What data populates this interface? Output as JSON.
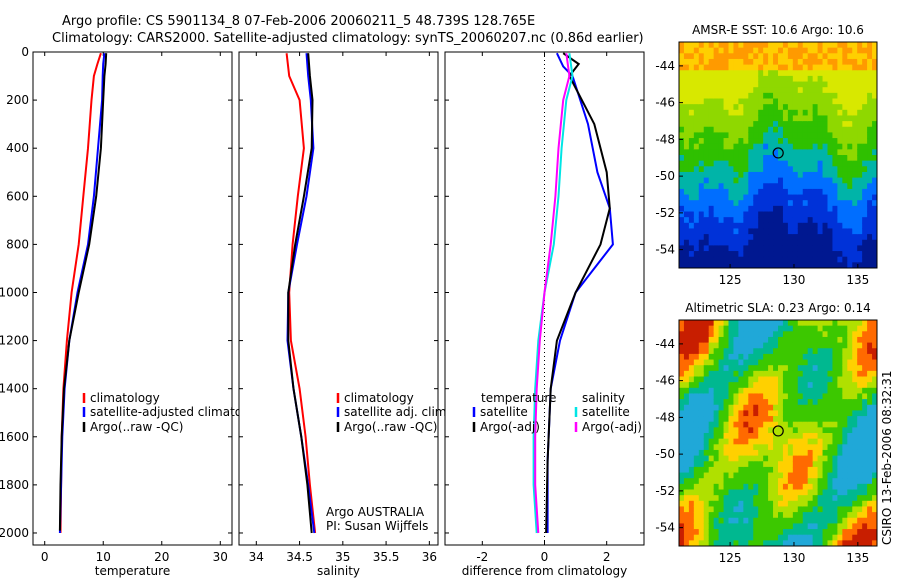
{
  "header": {
    "title_line1": "Argo profile: CS 5901134_8 07-Feb-2006 20060211_5 48.739S 128.765E",
    "title_line2": "Climatology: CARS2000. Satellite-adjusted climatology: synTS_20060207.nc (0.86d earlier)"
  },
  "colors": {
    "climatology": "#ff0000",
    "satellite": "#0000ff",
    "argo": "#000000",
    "salinity_sat": "#00e5e5",
    "salinity_argo": "#ff00ff"
  },
  "chart_data": [
    {
      "type": "line",
      "panel": "temperature",
      "xlabel": "temperature",
      "xlim": [
        -2,
        32
      ],
      "ylim": [
        2050,
        0
      ],
      "xticks": [
        "0",
        "10",
        "20",
        "30"
      ],
      "yticks": [
        "0",
        "200",
        "400",
        "600",
        "800",
        "1000",
        "1200",
        "1400",
        "1600",
        "1800",
        "2000"
      ],
      "legend": [
        "climatology",
        "satellite-adjusted climatology",
        "Argo(..raw -QC)"
      ],
      "series": [
        {
          "name": "climatology",
          "color": "#ff0000",
          "points": [
            [
              9.6,
              5
            ],
            [
              9.0,
              50
            ],
            [
              8.4,
              100
            ],
            [
              8.0,
              200
            ],
            [
              7.4,
              400
            ],
            [
              6.6,
              600
            ],
            [
              5.8,
              800
            ],
            [
              4.6,
              1000
            ],
            [
              3.8,
              1200
            ],
            [
              3.2,
              1400
            ],
            [
              2.9,
              1600
            ],
            [
              2.8,
              1800
            ],
            [
              2.7,
              2000
            ]
          ]
        },
        {
          "name": "satellite-adjusted climatology",
          "color": "#0000ff",
          "points": [
            [
              10.2,
              5
            ],
            [
              10.0,
              50
            ],
            [
              9.9,
              100
            ],
            [
              9.8,
              200
            ],
            [
              9.1,
              400
            ],
            [
              8.4,
              600
            ],
            [
              7.4,
              800
            ],
            [
              5.6,
              1000
            ],
            [
              4.2,
              1200
            ],
            [
              3.4,
              1400
            ],
            [
              3.0,
              1600
            ],
            [
              2.8,
              1800
            ],
            [
              2.6,
              2000
            ]
          ]
        },
        {
          "name": "Argo(..raw -QC)",
          "color": "#000000",
          "points": [
            [
              10.5,
              5
            ],
            [
              10.4,
              50
            ],
            [
              10.2,
              100
            ],
            [
              10.0,
              200
            ],
            [
              9.6,
              400
            ],
            [
              8.8,
              600
            ],
            [
              7.6,
              800
            ],
            [
              5.8,
              1000
            ],
            [
              4.2,
              1200
            ],
            [
              3.3,
              1400
            ],
            [
              2.9,
              1600
            ],
            [
              2.7,
              1800
            ],
            [
              2.6,
              1990
            ]
          ]
        }
      ]
    },
    {
      "type": "line",
      "panel": "salinity",
      "xlabel": "salinity",
      "xlim": [
        33.8,
        36.1
      ],
      "ylim": [
        2050,
        0
      ],
      "xticks": [
        "34",
        "34.5",
        "35",
        "35.5",
        "36"
      ],
      "yticks": [],
      "legend": [
        "climatology",
        "satellite adj. clim.",
        "Argo(..raw -QC)"
      ],
      "annotation": [
        "Argo AUSTRALIA",
        "PI: Susan Wijffels"
      ],
      "series": [
        {
          "name": "climatology",
          "color": "#ff0000",
          "points": [
            [
              34.35,
              5
            ],
            [
              34.38,
              100
            ],
            [
              34.5,
              200
            ],
            [
              34.55,
              400
            ],
            [
              34.48,
              600
            ],
            [
              34.42,
              800
            ],
            [
              34.38,
              1000
            ],
            [
              34.4,
              1200
            ],
            [
              34.5,
              1400
            ],
            [
              34.57,
              1600
            ],
            [
              34.62,
              1800
            ],
            [
              34.68,
              2000
            ]
          ]
        },
        {
          "name": "satellite adj. clim.",
          "color": "#0000ff",
          "points": [
            [
              34.58,
              5
            ],
            [
              34.6,
              100
            ],
            [
              34.63,
              200
            ],
            [
              34.66,
              400
            ],
            [
              34.58,
              600
            ],
            [
              34.47,
              800
            ],
            [
              34.37,
              1000
            ],
            [
              34.36,
              1200
            ],
            [
              34.43,
              1400
            ],
            [
              34.52,
              1600
            ],
            [
              34.6,
              1800
            ],
            [
              34.67,
              2000
            ]
          ]
        },
        {
          "name": "Argo(..raw -QC)",
          "color": "#000000",
          "points": [
            [
              34.6,
              5
            ],
            [
              34.62,
              100
            ],
            [
              34.65,
              200
            ],
            [
              34.64,
              400
            ],
            [
              34.55,
              600
            ],
            [
              34.45,
              800
            ],
            [
              34.37,
              1000
            ],
            [
              34.37,
              1200
            ],
            [
              34.43,
              1400
            ],
            [
              34.52,
              1600
            ],
            [
              34.59,
              1800
            ],
            [
              34.64,
              2000
            ]
          ]
        }
      ]
    },
    {
      "type": "line",
      "panel": "difference",
      "xlabel": "difference from climatology",
      "xlim": [
        -3.2,
        3.2
      ],
      "ylim": [
        2050,
        0
      ],
      "xticks": [
        "-2",
        "0",
        "2"
      ],
      "yticks": [],
      "legend_temperature": [
        "temperature",
        "satellite",
        "Argo(-adj)"
      ],
      "legend_salinity": [
        "salinity",
        "satellite",
        "Argo(-adj)"
      ],
      "series": [
        {
          "name": "temperature satellite",
          "color": "#0000ff",
          "points": [
            [
              0.4,
              5
            ],
            [
              0.6,
              60
            ],
            [
              0.9,
              100
            ],
            [
              1.4,
              300
            ],
            [
              1.7,
              500
            ],
            [
              2.1,
              650
            ],
            [
              2.2,
              800
            ],
            [
              1.0,
              1000
            ],
            [
              0.5,
              1200
            ],
            [
              0.2,
              1400
            ],
            [
              0.1,
              1700
            ],
            [
              0.1,
              2000
            ]
          ]
        },
        {
          "name": "temperature Argo(-adj)",
          "color": "#000000",
          "points": [
            [
              0.6,
              5
            ],
            [
              1.1,
              50
            ],
            [
              0.8,
              100
            ],
            [
              1.6,
              300
            ],
            [
              2.0,
              500
            ],
            [
              2.1,
              650
            ],
            [
              1.8,
              800
            ],
            [
              1.0,
              1000
            ],
            [
              0.4,
              1200
            ],
            [
              0.2,
              1400
            ],
            [
              0.1,
              1700
            ],
            [
              0.05,
              2000
            ]
          ]
        },
        {
          "name": "salinity satellite",
          "color": "#00e5e5",
          "points": [
            [
              0.8,
              5
            ],
            [
              0.9,
              100
            ],
            [
              0.7,
              200
            ],
            [
              0.55,
              400
            ],
            [
              0.45,
              600
            ],
            [
              0.3,
              800
            ],
            [
              0.0,
              1000
            ],
            [
              -0.2,
              1200
            ],
            [
              -0.3,
              1400
            ],
            [
              -0.35,
              1600
            ],
            [
              -0.35,
              1800
            ],
            [
              -0.25,
              2000
            ]
          ]
        },
        {
          "name": "salinity Argo(-adj)",
          "color": "#ff00ff",
          "points": [
            [
              0.7,
              5
            ],
            [
              0.8,
              100
            ],
            [
              0.6,
              200
            ],
            [
              0.45,
              400
            ],
            [
              0.35,
              600
            ],
            [
              0.2,
              800
            ],
            [
              0.0,
              1000
            ],
            [
              -0.15,
              1200
            ],
            [
              -0.25,
              1400
            ],
            [
              -0.3,
              1600
            ],
            [
              -0.3,
              1800
            ],
            [
              -0.2,
              2000
            ]
          ]
        }
      ]
    },
    {
      "type": "heatmap",
      "panel": "sst_map",
      "title": "AMSR-E SST: 10.6 Argo: 10.6",
      "xlim": [
        121,
        136.5
      ],
      "ylim": [
        -55,
        -42.7
      ],
      "xticks": [
        "125",
        "130",
        "135"
      ],
      "yticks": [
        "-44",
        "-46",
        "-48",
        "-50",
        "-52",
        "-54"
      ],
      "marker": {
        "lon": 128.765,
        "lat": -48.739
      }
    },
    {
      "type": "heatmap",
      "panel": "sla_map",
      "title": "Altimetric SLA: 0.23 Argo: 0.14",
      "xlim": [
        121,
        136.5
      ],
      "ylim": [
        -55,
        -42.7
      ],
      "xticks": [
        "125",
        "130",
        "135"
      ],
      "yticks": [
        "-44",
        "-46",
        "-48",
        "-50",
        "-52",
        "-54"
      ],
      "marker": {
        "lon": 128.765,
        "lat": -48.739
      }
    }
  ],
  "footer": {
    "credit": "CSIRO 13-Feb-2006 08:32:31"
  }
}
